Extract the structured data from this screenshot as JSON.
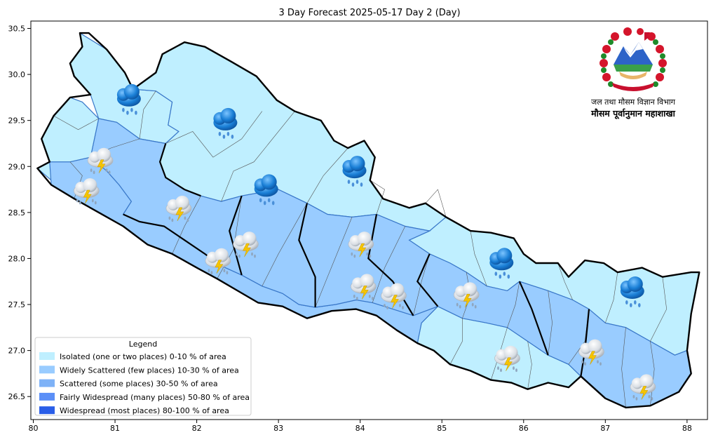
{
  "title": "3 Day Forecast 2025-05-17 Day 2 (Day)",
  "x_ticks": [
    "80",
    "81",
    "82",
    "83",
    "84",
    "85",
    "86",
    "87",
    "88"
  ],
  "y_ticks": [
    "30.5",
    "30.0",
    "29.5",
    "29.0",
    "28.5",
    "28.0",
    "27.5",
    "27.0",
    "26.5"
  ],
  "x_range": [
    79.97,
    88.25
  ],
  "y_range": [
    26.25,
    30.58
  ],
  "legend": {
    "title": "Legend",
    "items": [
      {
        "label": "Isolated (one or two places)  0-10 % of area",
        "color": "#bfefff"
      },
      {
        "label": "Widely Scattered (few places) 10-30 % of area",
        "color": "#99ccff"
      },
      {
        "label": "Scattered (some places) 30-50  % of area",
        "color": "#7eb2f7"
      },
      {
        "label": "Fairly Widespread (many places) 50-80 % of area",
        "color": "#5b8ff7"
      },
      {
        "label": "Widespread (most places) 80-100 % of area",
        "color": "#2a5ee8"
      }
    ]
  },
  "department": {
    "line1": "जल तथा मौसम विज्ञान विभाग",
    "line2": "मौसम पूर्वानुमान महाशाखा",
    "emblem_icon": "nepal-emblem-icon"
  },
  "weather_markers": [
    {
      "icon": "rain-cloud-icon",
      "lon": 81.17,
      "lat": 29.72
    },
    {
      "icon": "rain-cloud-icon",
      "lon": 82.35,
      "lat": 29.46
    },
    {
      "icon": "rain-cloud-icon",
      "lon": 82.85,
      "lat": 28.74
    },
    {
      "icon": "rain-cloud-icon",
      "lon": 83.93,
      "lat": 28.94
    },
    {
      "icon": "rain-cloud-icon",
      "lon": 85.73,
      "lat": 27.94
    },
    {
      "icon": "rain-cloud-icon",
      "lon": 87.33,
      "lat": 27.63
    },
    {
      "icon": "thunderstorm-icon",
      "lon": 80.82,
      "lat": 29.05
    },
    {
      "icon": "thunderstorm-icon",
      "lon": 80.65,
      "lat": 28.72
    },
    {
      "icon": "thunderstorm-icon",
      "lon": 81.78,
      "lat": 28.53
    },
    {
      "icon": "thunderstorm-icon",
      "lon": 82.6,
      "lat": 28.14
    },
    {
      "icon": "thunderstorm-icon",
      "lon": 84.01,
      "lat": 28.14
    },
    {
      "icon": "thunderstorm-icon",
      "lon": 82.26,
      "lat": 27.96
    },
    {
      "icon": "thunderstorm-icon",
      "lon": 84.04,
      "lat": 27.68
    },
    {
      "icon": "thunderstorm-icon",
      "lon": 84.41,
      "lat": 27.58
    },
    {
      "icon": "thunderstorm-icon",
      "lon": 85.3,
      "lat": 27.59
    },
    {
      "icon": "thunderstorm-icon",
      "lon": 85.8,
      "lat": 26.9
    },
    {
      "icon": "thunderstorm-icon",
      "lon": 86.83,
      "lat": 26.97
    },
    {
      "icon": "thunderstorm-icon",
      "lon": 87.46,
      "lat": 26.59
    }
  ],
  "regions": [
    {
      "category": 0,
      "points": [
        [
          80.57,
          30.45
        ],
        [
          80.9,
          30.27
        ],
        [
          81.12,
          30.02
        ],
        [
          81.22,
          29.84
        ],
        [
          81.5,
          29.82
        ],
        [
          81.7,
          29.7
        ],
        [
          81.65,
          29.45
        ],
        [
          81.78,
          29.38
        ],
        [
          81.62,
          29.25
        ],
        [
          81.3,
          29.3
        ],
        [
          81.02,
          29.48
        ],
        [
          80.8,
          29.52
        ],
        [
          80.7,
          29.78
        ],
        [
          80.5,
          29.98
        ],
        [
          80.45,
          30.12
        ],
        [
          80.6,
          30.3
        ]
      ]
    },
    {
      "category": 0,
      "points": [
        [
          81.22,
          29.84
        ],
        [
          81.5,
          30.02
        ],
        [
          81.58,
          30.22
        ],
        [
          81.85,
          30.35
        ],
        [
          82.1,
          30.3
        ],
        [
          82.42,
          30.14
        ],
        [
          82.73,
          29.98
        ],
        [
          82.98,
          29.72
        ],
        [
          83.2,
          29.6
        ],
        [
          83.52,
          29.5
        ],
        [
          83.68,
          29.28
        ],
        [
          83.85,
          29.2
        ],
        [
          84.05,
          29.28
        ],
        [
          84.18,
          29.1
        ],
        [
          84.12,
          28.85
        ],
        [
          84.28,
          28.65
        ],
        [
          84.6,
          28.55
        ],
        [
          84.8,
          28.6
        ],
        [
          85.05,
          28.45
        ],
        [
          84.85,
          28.3
        ],
        [
          84.55,
          28.35
        ],
        [
          84.2,
          28.48
        ],
        [
          83.9,
          28.45
        ],
        [
          83.6,
          28.48
        ],
        [
          83.35,
          28.6
        ],
        [
          83.0,
          28.75
        ],
        [
          82.8,
          28.72
        ],
        [
          82.55,
          28.68
        ],
        [
          82.3,
          28.62
        ],
        [
          82.05,
          28.68
        ],
        [
          81.85,
          28.75
        ],
        [
          81.62,
          28.88
        ],
        [
          81.55,
          29.05
        ],
        [
          81.62,
          29.25
        ],
        [
          81.78,
          29.38
        ],
        [
          81.65,
          29.45
        ],
        [
          81.7,
          29.7
        ],
        [
          81.5,
          29.82
        ]
      ]
    },
    {
      "category": 0,
      "points": [
        [
          80.05,
          28.98
        ],
        [
          80.22,
          28.85
        ],
        [
          80.55,
          28.7
        ],
        [
          80.82,
          28.6
        ],
        [
          81.1,
          28.48
        ],
        [
          81.2,
          28.62
        ],
        [
          81.05,
          28.8
        ],
        [
          80.9,
          28.95
        ],
        [
          80.7,
          29.1
        ],
        [
          80.45,
          29.05
        ],
        [
          80.2,
          29.05
        ]
      ]
    },
    {
      "category": 0,
      "points": [
        [
          85.05,
          28.45
        ],
        [
          85.35,
          28.3
        ],
        [
          85.6,
          28.28
        ],
        [
          85.88,
          28.22
        ],
        [
          86.0,
          28.05
        ],
        [
          86.15,
          27.95
        ],
        [
          86.42,
          27.95
        ],
        [
          86.55,
          27.8
        ],
        [
          86.75,
          27.98
        ],
        [
          86.98,
          27.95
        ],
        [
          87.15,
          27.85
        ],
        [
          87.45,
          27.9
        ],
        [
          87.7,
          27.8
        ],
        [
          88.05,
          27.85
        ],
        [
          88.15,
          27.85
        ],
        [
          88.05,
          27.4
        ],
        [
          88.0,
          27.0
        ],
        [
          87.85,
          26.95
        ],
        [
          87.55,
          27.1
        ],
        [
          87.25,
          27.25
        ],
        [
          87.0,
          27.3
        ],
        [
          86.8,
          27.45
        ],
        [
          86.6,
          27.55
        ],
        [
          86.3,
          27.65
        ],
        [
          85.95,
          27.75
        ],
        [
          85.8,
          27.65
        ],
        [
          85.55,
          27.7
        ],
        [
          85.3,
          27.85
        ],
        [
          85.1,
          27.95
        ],
        [
          84.85,
          28.05
        ],
        [
          84.6,
          28.2
        ],
        [
          84.85,
          28.3
        ]
      ]
    },
    {
      "category": 0,
      "points": [
        [
          84.95,
          27.48
        ],
        [
          85.25,
          27.35
        ],
        [
          85.55,
          27.3
        ],
        [
          85.8,
          27.25
        ],
        [
          86.05,
          27.1
        ],
        [
          86.3,
          26.95
        ],
        [
          86.55,
          26.85
        ],
        [
          86.7,
          26.72
        ],
        [
          86.55,
          26.6
        ],
        [
          86.3,
          26.65
        ],
        [
          86.05,
          26.58
        ],
        [
          85.85,
          26.65
        ],
        [
          85.6,
          26.68
        ],
        [
          85.35,
          26.78
        ],
        [
          85.1,
          26.85
        ],
        [
          84.9,
          27.0
        ],
        [
          84.7,
          27.08
        ],
        [
          84.75,
          27.3
        ]
      ]
    },
    {
      "category": 1,
      "points": [
        [
          80.2,
          29.05
        ],
        [
          80.45,
          29.05
        ],
        [
          80.7,
          29.1
        ],
        [
          80.9,
          28.95
        ],
        [
          81.05,
          28.8
        ],
        [
          81.2,
          28.62
        ],
        [
          81.1,
          28.48
        ],
        [
          81.3,
          28.4
        ],
        [
          81.6,
          28.35
        ],
        [
          81.85,
          28.2
        ],
        [
          82.1,
          28.05
        ],
        [
          82.3,
          27.92
        ],
        [
          82.55,
          27.82
        ],
        [
          82.8,
          27.7
        ],
        [
          83.05,
          27.62
        ],
        [
          83.25,
          27.5
        ],
        [
          83.45,
          27.47
        ],
        [
          83.7,
          27.5
        ],
        [
          83.95,
          27.55
        ],
        [
          84.15,
          27.52
        ],
        [
          84.4,
          27.45
        ],
        [
          84.65,
          27.38
        ],
        [
          84.95,
          27.48
        ],
        [
          84.75,
          27.3
        ],
        [
          84.7,
          27.08
        ],
        [
          84.45,
          27.22
        ],
        [
          84.2,
          27.38
        ],
        [
          83.95,
          27.45
        ],
        [
          83.65,
          27.43
        ],
        [
          83.35,
          27.35
        ],
        [
          83.05,
          27.48
        ],
        [
          82.75,
          27.52
        ],
        [
          82.5,
          27.65
        ],
        [
          82.25,
          27.78
        ],
        [
          82.0,
          27.9
        ],
        [
          81.7,
          28.05
        ],
        [
          81.4,
          28.15
        ],
        [
          81.1,
          28.35
        ],
        [
          80.8,
          28.5
        ],
        [
          80.5,
          28.65
        ],
        [
          80.22,
          28.8
        ]
      ]
    },
    {
      "category": 1,
      "points": [
        [
          81.62,
          29.25
        ],
        [
          81.55,
          29.05
        ],
        [
          81.62,
          28.88
        ],
        [
          81.85,
          28.75
        ],
        [
          82.05,
          28.68
        ],
        [
          82.3,
          28.62
        ],
        [
          82.55,
          28.68
        ],
        [
          82.8,
          28.72
        ],
        [
          83.0,
          28.75
        ],
        [
          83.35,
          28.6
        ],
        [
          83.6,
          28.48
        ],
        [
          83.9,
          28.45
        ],
        [
          84.2,
          28.48
        ],
        [
          84.55,
          28.35
        ],
        [
          84.85,
          28.3
        ],
        [
          84.6,
          28.2
        ],
        [
          84.85,
          28.05
        ],
        [
          85.1,
          27.95
        ],
        [
          85.3,
          27.85
        ],
        [
          85.55,
          27.7
        ],
        [
          85.8,
          27.65
        ],
        [
          85.95,
          27.75
        ],
        [
          86.3,
          27.65
        ],
        [
          86.6,
          27.55
        ],
        [
          86.8,
          27.45
        ],
        [
          87.0,
          27.3
        ],
        [
          87.25,
          27.25
        ],
        [
          87.55,
          27.1
        ],
        [
          87.85,
          26.95
        ],
        [
          88.0,
          27.0
        ],
        [
          88.05,
          26.75
        ],
        [
          87.9,
          26.55
        ],
        [
          87.55,
          26.4
        ],
        [
          87.25,
          26.38
        ],
        [
          87.0,
          26.48
        ],
        [
          86.7,
          26.72
        ],
        [
          86.55,
          26.85
        ],
        [
          86.3,
          26.95
        ],
        [
          86.05,
          27.1
        ],
        [
          85.8,
          27.25
        ],
        [
          85.55,
          27.3
        ],
        [
          85.25,
          27.35
        ],
        [
          84.95,
          27.48
        ],
        [
          84.65,
          27.38
        ],
        [
          84.4,
          27.45
        ],
        [
          84.15,
          27.52
        ],
        [
          83.95,
          27.55
        ],
        [
          83.7,
          27.5
        ],
        [
          83.45,
          27.47
        ],
        [
          83.25,
          27.5
        ],
        [
          83.05,
          27.62
        ],
        [
          82.8,
          27.7
        ],
        [
          82.55,
          27.82
        ],
        [
          82.3,
          27.92
        ],
        [
          82.1,
          28.05
        ],
        [
          81.85,
          28.2
        ],
        [
          81.6,
          28.35
        ],
        [
          81.3,
          28.4
        ],
        [
          81.1,
          28.48
        ],
        [
          81.2,
          28.62
        ],
        [
          81.05,
          28.8
        ],
        [
          80.9,
          28.95
        ],
        [
          80.7,
          29.1
        ],
        [
          80.8,
          29.52
        ],
        [
          81.02,
          29.48
        ],
        [
          81.3,
          29.3
        ]
      ]
    },
    {
      "category": 0,
      "points": [
        [
          80.25,
          29.55
        ],
        [
          80.45,
          29.75
        ],
        [
          80.6,
          29.7
        ],
        [
          80.8,
          29.52
        ],
        [
          80.7,
          29.1
        ],
        [
          80.45,
          29.05
        ],
        [
          80.2,
          29.05
        ],
        [
          80.1,
          29.3
        ]
      ]
    }
  ]
}
